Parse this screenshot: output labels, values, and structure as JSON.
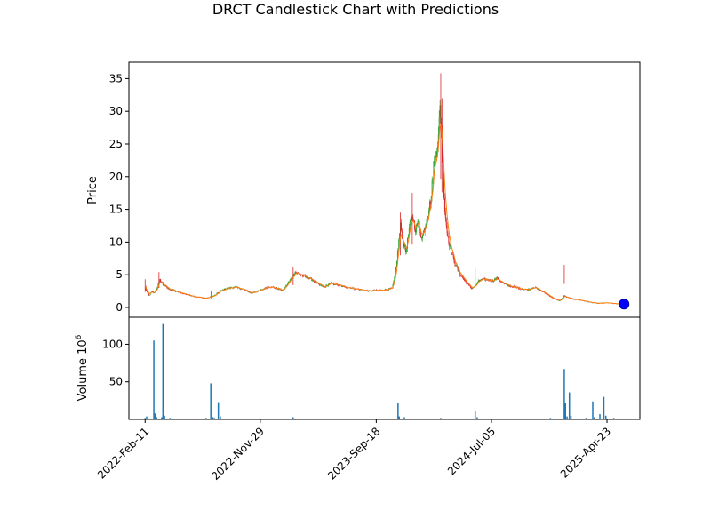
{
  "chart_data": {
    "type": "candlestick",
    "title": "DRCT Candlestick Chart with Predictions",
    "price_panel": {
      "ylabel": "Price",
      "ylim": [
        -1.5,
        37.5
      ],
      "yticks": [
        0,
        5,
        10,
        15,
        20,
        25,
        30,
        35
      ],
      "up_color": "#2ca02c",
      "down_color": "#d62728",
      "prediction_line_color": "#ff7f0e",
      "prediction_marker_color": "#0000ff",
      "price_points": [
        [
          "2022-02-11",
          3.2
        ],
        [
          "2022-02-14",
          2.5
        ],
        [
          "2022-02-20",
          1.8
        ],
        [
          "2022-02-28",
          2.4
        ],
        [
          "2022-03-06",
          2.2
        ],
        [
          "2022-03-12",
          2.9
        ],
        [
          "2022-03-20",
          4.2
        ],
        [
          "2022-03-28",
          3.5
        ],
        [
          "2022-04-10",
          2.9
        ],
        [
          "2022-05-01",
          2.4
        ],
        [
          "2022-05-25",
          2.0
        ],
        [
          "2022-06-20",
          1.6
        ],
        [
          "2022-07-15",
          1.4
        ],
        [
          "2022-08-05",
          1.8
        ],
        [
          "2022-08-20",
          2.5
        ],
        [
          "2022-09-05",
          2.9
        ],
        [
          "2022-09-25",
          3.1
        ],
        [
          "2022-10-15",
          2.8
        ],
        [
          "2022-11-05",
          2.2
        ],
        [
          "2022-11-29",
          2.6
        ],
        [
          "2022-12-20",
          3.2
        ],
        [
          "2023-01-10",
          2.9
        ],
        [
          "2023-01-25",
          2.6
        ],
        [
          "2023-02-10",
          4.0
        ],
        [
          "2023-02-25",
          5.4
        ],
        [
          "2023-03-10",
          5.0
        ],
        [
          "2023-03-25",
          4.6
        ],
        [
          "2023-04-10",
          4.2
        ],
        [
          "2023-04-25",
          3.5
        ],
        [
          "2023-05-10",
          3.1
        ],
        [
          "2023-05-25",
          3.7
        ],
        [
          "2023-06-10",
          3.5
        ],
        [
          "2023-06-25",
          3.2
        ],
        [
          "2023-07-15",
          3.0
        ],
        [
          "2023-08-10",
          2.7
        ],
        [
          "2023-09-01",
          2.5
        ],
        [
          "2023-09-18",
          2.6
        ],
        [
          "2023-10-10",
          2.7
        ],
        [
          "2023-10-28",
          2.9
        ],
        [
          "2023-11-05",
          5.0
        ],
        [
          "2023-11-12",
          9.0
        ],
        [
          "2023-11-18",
          12.5
        ],
        [
          "2023-11-25",
          10.0
        ],
        [
          "2023-12-02",
          8.5
        ],
        [
          "2023-12-10",
          12.0
        ],
        [
          "2023-12-18",
          14.0
        ],
        [
          "2023-12-26",
          12.0
        ],
        [
          "2024-01-03",
          13.0
        ],
        [
          "2024-01-11",
          10.5
        ],
        [
          "2024-01-19",
          12.5
        ],
        [
          "2024-01-27",
          14.5
        ],
        [
          "2024-02-04",
          17.0
        ],
        [
          "2024-02-10",
          22.0
        ],
        [
          "2024-02-16",
          24.0
        ],
        [
          "2024-02-22",
          26.0
        ],
        [
          "2024-02-26",
          30.5
        ],
        [
          "2024-03-01",
          27.0
        ],
        [
          "2024-03-05",
          20.0
        ],
        [
          "2024-03-09",
          15.0
        ],
        [
          "2024-03-15",
          11.5
        ],
        [
          "2024-03-25",
          8.5
        ],
        [
          "2024-04-05",
          6.5
        ],
        [
          "2024-04-15",
          5.2
        ],
        [
          "2024-04-25",
          4.4
        ],
        [
          "2024-05-05",
          3.6
        ],
        [
          "2024-05-15",
          2.9
        ],
        [
          "2024-05-25",
          3.3
        ],
        [
          "2024-06-05",
          4.2
        ],
        [
          "2024-06-20",
          4.3
        ],
        [
          "2024-07-05",
          4.1
        ],
        [
          "2024-07-20",
          4.4
        ],
        [
          "2024-08-05",
          3.6
        ],
        [
          "2024-08-25",
          3.2
        ],
        [
          "2024-09-15",
          2.9
        ],
        [
          "2024-10-05",
          2.7
        ],
        [
          "2024-10-20",
          3.1
        ],
        [
          "2024-11-05",
          2.6
        ],
        [
          "2024-11-25",
          1.9
        ],
        [
          "2024-12-10",
          1.3
        ],
        [
          "2024-12-25",
          1.0
        ],
        [
          "2025-01-05",
          1.8
        ],
        [
          "2025-01-12",
          1.5
        ],
        [
          "2025-01-25",
          1.3
        ],
        [
          "2025-02-15",
          1.1
        ],
        [
          "2025-03-10",
          0.8
        ],
        [
          "2025-04-01",
          0.6
        ],
        [
          "2025-04-23",
          0.7
        ],
        [
          "2025-05-15",
          0.55
        ],
        [
          "2025-06-01",
          0.5
        ]
      ],
      "spikes": [
        [
          "2022-02-11",
          4.3
        ],
        [
          "2022-03-18",
          5.4
        ],
        [
          "2022-07-28",
          2.5
        ],
        [
          "2023-02-20",
          6.2
        ],
        [
          "2023-11-18",
          14.5
        ],
        [
          "2023-12-18",
          17.5
        ],
        [
          "2024-02-28",
          35.8
        ],
        [
          "2024-03-02",
          32.0
        ],
        [
          "2024-05-25",
          6.0
        ],
        [
          "2025-01-05",
          6.5
        ]
      ],
      "prediction_marker": {
        "date": "2025-06-05",
        "value": 0.5
      }
    },
    "volume_panel": {
      "ylabel": "Volume  10",
      "ylabel_exponent": "6",
      "ylim": [
        0,
        136
      ],
      "yticks": [
        50,
        100
      ],
      "bar_color": "#1f77b4",
      "bars": [
        [
          "2022-02-11",
          2
        ],
        [
          "2022-02-15",
          4
        ],
        [
          "2022-03-05",
          105
        ],
        [
          "2022-03-08",
          8
        ],
        [
          "2022-03-12",
          3
        ],
        [
          "2022-03-25",
          3
        ],
        [
          "2022-03-28",
          127
        ],
        [
          "2022-04-01",
          5
        ],
        [
          "2022-04-15",
          2
        ],
        [
          "2022-07-15",
          2
        ],
        [
          "2022-07-27",
          48
        ],
        [
          "2022-08-01",
          3
        ],
        [
          "2022-08-05",
          2
        ],
        [
          "2022-08-15",
          23
        ],
        [
          "2022-08-20",
          4
        ],
        [
          "2022-10-01",
          1
        ],
        [
          "2023-02-20",
          3
        ],
        [
          "2023-06-01",
          1
        ],
        [
          "2023-11-12",
          22
        ],
        [
          "2023-11-15",
          4
        ],
        [
          "2023-11-28",
          3
        ],
        [
          "2024-02-28",
          2
        ],
        [
          "2024-05-25",
          11
        ],
        [
          "2024-05-30",
          3
        ],
        [
          "2024-07-20",
          1
        ],
        [
          "2024-12-01",
          2
        ],
        [
          "2025-01-05",
          67
        ],
        [
          "2025-01-08",
          22
        ],
        [
          "2025-01-12",
          4
        ],
        [
          "2025-01-18",
          36
        ],
        [
          "2025-01-22",
          5
        ],
        [
          "2025-03-01",
          2
        ],
        [
          "2025-03-18",
          24
        ],
        [
          "2025-03-22",
          3
        ],
        [
          "2025-04-05",
          7
        ],
        [
          "2025-04-15",
          30
        ],
        [
          "2025-04-20",
          5
        ],
        [
          "2025-05-10",
          2
        ]
      ]
    },
    "x_axis": {
      "type": "date",
      "xlim": [
        "2022-01-01",
        "2025-07-15"
      ],
      "tick_dates": [
        "2022-02-11",
        "2022-11-29",
        "2023-09-18",
        "2024-07-05",
        "2025-04-23"
      ],
      "tick_labels": [
        "2022-Feb-11",
        "2022-Nov-29",
        "2023-Sep-18",
        "2024-Jul-05",
        "2025-Apr-23"
      ],
      "tick_rotation": 45,
      "data_range": [
        "2022-02-11",
        "2025-06-05"
      ]
    }
  }
}
